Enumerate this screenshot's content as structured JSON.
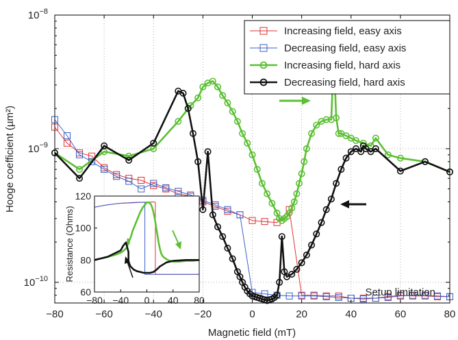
{
  "chart_data": [
    {
      "type": "line",
      "xlabel": "Magnetic field (mT)",
      "ylabel": "Hooge coefficient (µm²)",
      "xlim": [
        -80,
        80
      ],
      "ylim": [
        7e-11,
        1e-08
      ],
      "yscale": "log",
      "grid": true,
      "grid_style": "dotted",
      "legend_position": "top-right",
      "xticks": [
        -80,
        -60,
        -40,
        -20,
        0,
        20,
        40,
        60,
        80
      ],
      "xtick_labels": [
        "−80",
        "−60",
        "−40",
        "−20",
        "0",
        "20",
        "40",
        "60",
        "80"
      ],
      "yticks": [
        1e-10,
        1e-09,
        1e-08
      ],
      "ytick_bases": [
        "10",
        "10",
        "10"
      ],
      "ytick_exponents": [
        "−10",
        "−9",
        "−8"
      ],
      "annotation": "Setup limitation",
      "series": [
        {
          "name": "Increasing field, easy axis",
          "color": "#e03030",
          "marker": "square",
          "x": [
            -80,
            -75,
            -70,
            -65,
            -60,
            -55,
            -50,
            -45,
            -40,
            -35,
            -30,
            -25,
            -20,
            -15,
            -10,
            -5,
            0,
            5,
            10,
            15,
            20,
            25,
            30,
            35,
            40,
            45,
            50,
            55,
            60,
            65,
            70,
            75,
            80
          ],
          "y": [
            1.45e-09,
            1.1e-09,
            9.3e-10,
            8.8e-10,
            7.2e-10,
            6.4e-10,
            6e-10,
            5.8e-10,
            5.3e-10,
            5e-10,
            4.6e-10,
            4.4e-10,
            4e-10,
            3.7e-10,
            3.4e-10,
            3.2e-10,
            2.9e-10,
            2.85e-10,
            2.8e-10,
            3.5e-10,
            8e-11,
            8e-11,
            7.9e-11,
            7.9e-11,
            7.6e-11,
            7.6e-11,
            7.6e-11,
            7.8e-11,
            8e-11,
            7.9e-11,
            7.9e-11,
            7.8e-11,
            7.8e-11
          ]
        },
        {
          "name": "Decreasing field, easy axis",
          "color": "#3a5fc8",
          "marker": "square",
          "x": [
            80,
            75,
            70,
            65,
            60,
            55,
            50,
            45,
            40,
            35,
            30,
            25,
            20,
            15,
            10,
            5,
            0,
            -5,
            -10,
            -15,
            -20,
            -25,
            -30,
            -35,
            -40,
            -45,
            -50,
            -55,
            -60,
            -65,
            -70,
            -75,
            -80
          ],
          "y": [
            7.8e-11,
            7.9e-11,
            8e-11,
            8e-11,
            7.9e-11,
            7.7e-11,
            7.6e-11,
            7.5e-11,
            7.6e-11,
            7.7e-11,
            7.8e-11,
            7.9e-11,
            7.9e-11,
            7.9e-11,
            8e-11,
            8.2e-11,
            8.4e-11,
            3.2e-10,
            3.5e-10,
            3.8e-10,
            4.1e-10,
            4.5e-10,
            4.8e-10,
            5.1e-10,
            5.5e-10,
            5e-10,
            5.7e-10,
            6.2e-10,
            7e-10,
            8e-10,
            9e-10,
            1.25e-09,
            1.65e-09
          ]
        },
        {
          "name": "Increasing field, hard axis",
          "color": "#5bbf33",
          "marker": "circle",
          "x": [
            -80,
            -70,
            -60,
            -50,
            -40,
            -30,
            -25,
            -22,
            -20,
            -18,
            -16,
            -14,
            -12,
            -10,
            -8,
            -6,
            -4,
            -2,
            0,
            2,
            4,
            6,
            8,
            10,
            11,
            12,
            13,
            14,
            15,
            16,
            17,
            18,
            19,
            20,
            21,
            22,
            24,
            26,
            28,
            30,
            32,
            33,
            34,
            35,
            36,
            38,
            40,
            42,
            45,
            48,
            50,
            55,
            60,
            70,
            80
          ],
          "y": [
            9.3e-10,
            7e-10,
            9.5e-10,
            8.8e-10,
            1e-09,
            1.6e-09,
            2.1e-09,
            2.4e-09,
            2.9e-09,
            3.1e-09,
            3.2e-09,
            2.9e-09,
            2.5e-09,
            2.2e-09,
            1.9e-09,
            1.6e-09,
            1.3e-09,
            1.1e-09,
            9e-10,
            7e-10,
            5.5e-10,
            4.6e-10,
            3.9e-10,
            3.3e-10,
            3e-10,
            2.9e-10,
            3e-10,
            3.1e-10,
            3.3e-10,
            3.6e-10,
            4e-10,
            4.6e-10,
            5.5e-10,
            6.5e-10,
            8e-10,
            1e-09,
            1.3e-09,
            1.5e-09,
            1.6e-09,
            1.65e-09,
            1.65e-09,
            5e-09,
            1.7e-09,
            1.3e-09,
            1.3e-09,
            1.25e-09,
            1.2e-09,
            1.15e-09,
            1.1e-09,
            1.05e-09,
            1.2e-09,
            9e-10,
            8.5e-10,
            8e-10,
            6.7e-10
          ]
        },
        {
          "name": "Decreasing field, hard axis",
          "color": "#111111",
          "marker": "circle",
          "x": [
            80,
            70,
            60,
            50,
            48,
            46,
            45,
            44,
            42,
            40,
            38,
            36,
            34,
            32,
            30,
            28,
            26,
            24,
            22,
            20,
            18,
            16,
            14,
            13,
            12,
            11,
            10,
            9,
            8,
            7,
            6,
            5,
            4,
            3,
            2,
            1,
            0,
            -1,
            -2,
            -3,
            -4,
            -5,
            -6,
            -8,
            -10,
            -12,
            -14,
            -16,
            -18,
            -20,
            -22,
            -24,
            -26,
            -28,
            -30,
            -40,
            -50,
            -60,
            -70,
            -80
          ],
          "y": [
            6.7e-10,
            8e-10,
            6.8e-10,
            1e-09,
            9.5e-10,
            1e-09,
            1.05e-09,
            9.5e-10,
            1e-09,
            9.5e-10,
            8.5e-10,
            7e-10,
            5.5e-10,
            4.2e-10,
            3.5e-10,
            2.8e-10,
            2.3e-10,
            1.9e-10,
            1.6e-10,
            1.4e-10,
            1.25e-10,
            1.15e-10,
            1.1e-10,
            1.2e-10,
            2.2e-10,
            1e-10,
            8e-11,
            7.7e-11,
            7.5e-11,
            7.4e-11,
            7.3e-11,
            7.4e-11,
            7.5e-11,
            7.6e-11,
            7.7e-11,
            7.8e-11,
            7.9e-11,
            8.2e-11,
            8.6e-11,
            9.2e-11,
            1e-10,
            1.1e-10,
            1.2e-10,
            1.5e-10,
            1.8e-10,
            2.2e-10,
            2.6e-10,
            3.2e-10,
            9.5e-10,
            3.5e-10,
            8e-10,
            1.3e-09,
            2e-09,
            2.6e-09,
            2.7e-09,
            1.1e-09,
            8.2e-10,
            1.05e-09,
            6e-10,
            9.3e-10
          ]
        }
      ]
    },
    {
      "type": "line",
      "inset": true,
      "xlabel": "",
      "ylabel": "Resistance (Ohms)",
      "xlim": [
        -80,
        80
      ],
      "ylim": [
        60,
        120
      ],
      "xticks": [
        -80,
        -40,
        0,
        40,
        80
      ],
      "xtick_labels": [
        "−80",
        "−40",
        "0",
        "40",
        "80"
      ],
      "yticks": [
        60,
        80,
        100,
        120
      ],
      "ytick_labels": [
        "60",
        "80",
        "100",
        "120"
      ],
      "series": [
        {
          "color": "#e03030",
          "x": [
            -80,
            -60,
            -40,
            -20,
            0,
            10,
            13,
            13,
            15,
            20,
            40,
            60,
            80
          ],
          "y": [
            113,
            114.5,
            115.5,
            116,
            116.2,
            116.3,
            116.2,
            71,
            71,
            71,
            71,
            71,
            71
          ]
        },
        {
          "color": "#3a5fc8",
          "x": [
            80,
            60,
            40,
            20,
            10,
            0,
            -3,
            -3,
            -10,
            -20,
            -40,
            -60,
            -80
          ],
          "y": [
            71,
            71,
            71,
            71,
            71,
            71,
            71,
            116,
            116,
            115.8,
            115.5,
            114.5,
            113
          ]
        },
        {
          "color": "#5bbf33",
          "x": [
            -80,
            -70,
            -60,
            -50,
            -40,
            -35,
            -30,
            -29,
            -28,
            -26,
            -24,
            -22,
            -20,
            -18,
            -16,
            -14,
            -12,
            -10,
            -8,
            -6,
            -4,
            -2,
            0,
            2,
            4,
            6,
            8,
            10,
            12,
            14,
            16,
            18,
            20,
            22,
            25,
            30,
            35,
            40,
            50,
            60,
            70,
            80
          ],
          "y": [
            80,
            81,
            82,
            83,
            84.5,
            86,
            88,
            93,
            90,
            93,
            95,
            98,
            100,
            102,
            104,
            106,
            108,
            110,
            111.5,
            113,
            114,
            115,
            116,
            116,
            115.8,
            115,
            113,
            110,
            106,
            101,
            96,
            91,
            87,
            84,
            82,
            80.5,
            79.5,
            79,
            79,
            79.5,
            79.5,
            80
          ]
        },
        {
          "color": "#111111",
          "x": [
            80,
            60,
            40,
            30,
            20,
            15,
            10,
            5,
            0,
            -5,
            -10,
            -15,
            -20,
            -25,
            -28,
            -28,
            -32,
            -36,
            -40,
            -50,
            -60,
            -70,
            -80
          ],
          "y": [
            80,
            80,
            79.5,
            78.5,
            76,
            74,
            72.5,
            72,
            72,
            72,
            72.5,
            73,
            74,
            76,
            79,
            85,
            91,
            89,
            86,
            84,
            82,
            81,
            80
          ]
        }
      ]
    }
  ]
}
